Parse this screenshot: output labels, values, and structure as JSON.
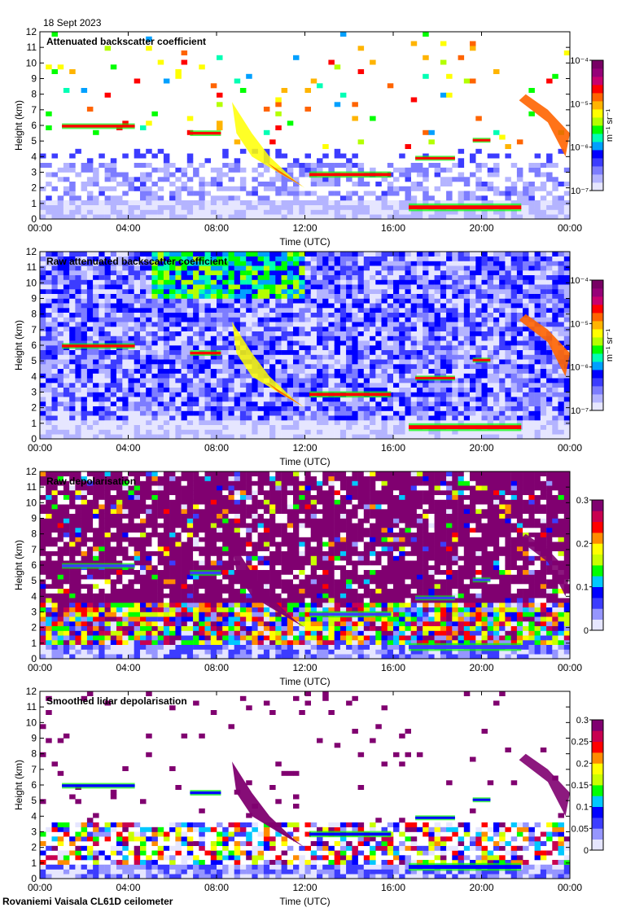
{
  "date": "18 Sept 2023",
  "footer": "Rovaniemi Vaisala CL61D ceilometer",
  "colors": {
    "colormap": [
      "#e6e6ff",
      "#b4b4ff",
      "#7d7dff",
      "#3c3cff",
      "#0000ff",
      "#00a0ff",
      "#00ffb4",
      "#00ff00",
      "#b4ff00",
      "#ffff00",
      "#ffb400",
      "#ff6400",
      "#ff0000",
      "#c8006e",
      "#960078",
      "#780064"
    ],
    "depol_colormap": [
      "#e6e6ff",
      "#9696ff",
      "#3c3cff",
      "#0000ff",
      "#00c8ff",
      "#00ff00",
      "#c8ff00",
      "#ffff00",
      "#ff8c00",
      "#ff0000",
      "#c80050",
      "#800070"
    ]
  },
  "chart_data": [
    {
      "type": "heatmap",
      "title": "Attenuated backscatter coefficient",
      "xlabel": "Time (UTC)",
      "ylabel": "Height (km)",
      "x_ticks": [
        "00:00",
        "04:00",
        "08:00",
        "12:00",
        "16:00",
        "20:00",
        "00:00"
      ],
      "y_ticks": [
        "0",
        "1",
        "2",
        "3",
        "4",
        "5",
        "6",
        "7",
        "8",
        "9",
        "10",
        "11",
        "12"
      ],
      "ylim": [
        0,
        12
      ],
      "colorbar": {
        "scale": "log",
        "unit": "m⁻¹ sr⁻¹",
        "ticks": [
          "10⁻⁷",
          "10⁻⁶",
          "10⁻⁵",
          "10⁻⁴"
        ]
      }
    },
    {
      "type": "heatmap",
      "title": "Raw attenuated backscatter coefficient",
      "xlabel": "Time (UTC)",
      "ylabel": "Height (km)",
      "x_ticks": [
        "00:00",
        "04:00",
        "08:00",
        "12:00",
        "16:00",
        "20:00",
        "00:00"
      ],
      "y_ticks": [
        "0",
        "1",
        "2",
        "3",
        "4",
        "5",
        "6",
        "7",
        "8",
        "9",
        "10",
        "11",
        "12"
      ],
      "ylim": [
        0,
        12
      ],
      "colorbar": {
        "scale": "log",
        "unit": "m⁻¹ sr⁻¹",
        "ticks": [
          "10⁻⁷",
          "10⁻⁶",
          "10⁻⁵",
          "10⁻⁴"
        ]
      }
    },
    {
      "type": "heatmap",
      "title": "Raw depolarisation",
      "xlabel": "Time (UTC)",
      "ylabel": "Height (km)",
      "x_ticks": [
        "00:00",
        "04:00",
        "08:00",
        "12:00",
        "16:00",
        "20:00",
        "00:00"
      ],
      "y_ticks": [
        "0",
        "1",
        "2",
        "3",
        "4",
        "5",
        "6",
        "7",
        "8",
        "9",
        "10",
        "11",
        "12"
      ],
      "ylim": [
        0,
        12
      ],
      "colorbar": {
        "scale": "linear",
        "unit": "",
        "ticks": [
          "0",
          "0.1",
          "0.2",
          "0.3"
        ]
      }
    },
    {
      "type": "heatmap",
      "title": "Smoothed lidar depolarisation",
      "xlabel": "Time (UTC)",
      "ylabel": "Height (km)",
      "x_ticks": [
        "00:00",
        "04:00",
        "08:00",
        "12:00",
        "16:00",
        "20:00",
        "00:00"
      ],
      "y_ticks": [
        "0",
        "1",
        "2",
        "3",
        "4",
        "5",
        "6",
        "7",
        "8",
        "9",
        "10",
        "11",
        "12"
      ],
      "ylim": [
        0,
        12
      ],
      "colorbar": {
        "scale": "linear",
        "unit": "",
        "ticks": [
          "0",
          "0.05",
          "0.1",
          "0.15",
          "0.2",
          "0.25",
          "0.3"
        ]
      }
    }
  ]
}
